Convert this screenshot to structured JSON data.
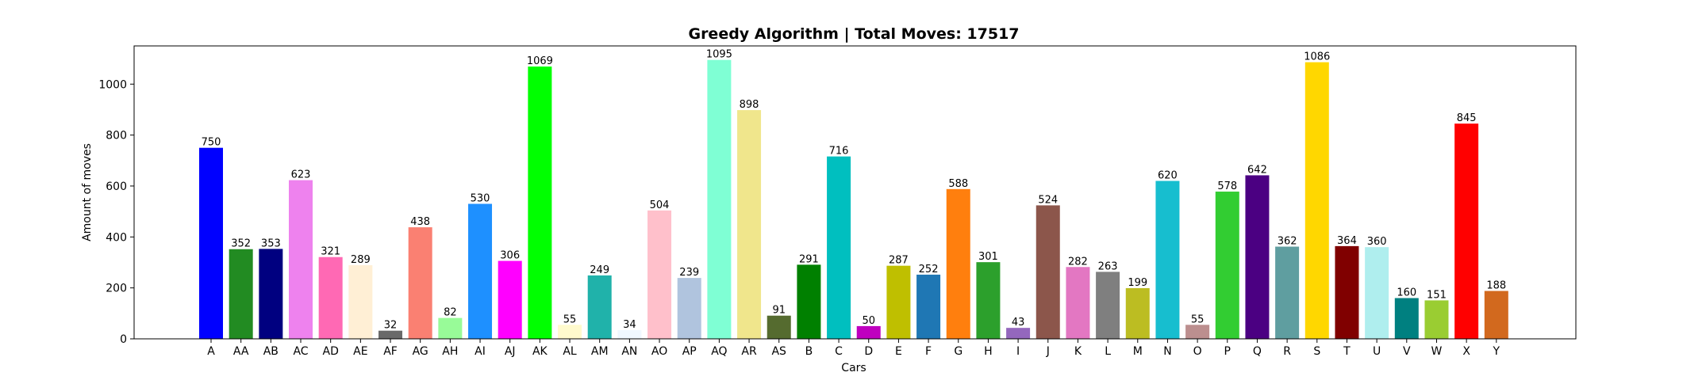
{
  "chart_data": {
    "type": "bar",
    "title": "Greedy Algorithm | Total Moves: 17517",
    "xlabel": "Cars",
    "ylabel": "Amount of moves",
    "ylim": [
      0,
      1150
    ],
    "yticks": [
      0,
      200,
      400,
      600,
      800,
      1000
    ],
    "grid": false,
    "categories": [
      "A",
      "AA",
      "AB",
      "AC",
      "AD",
      "AE",
      "AF",
      "AG",
      "AH",
      "AI",
      "AJ",
      "AK",
      "AL",
      "AM",
      "AN",
      "AO",
      "AP",
      "AQ",
      "AR",
      "AS",
      "B",
      "C",
      "D",
      "E",
      "F",
      "G",
      "H",
      "I",
      "J",
      "K",
      "L",
      "M",
      "N",
      "O",
      "P",
      "Q",
      "R",
      "S",
      "T",
      "U",
      "V",
      "W",
      "X",
      "Y"
    ],
    "values": [
      750,
      352,
      353,
      623,
      321,
      289,
      32,
      438,
      82,
      530,
      306,
      1069,
      55,
      249,
      34,
      504,
      239,
      1095,
      898,
      91,
      291,
      716,
      50,
      287,
      252,
      588,
      301,
      43,
      524,
      282,
      263,
      199,
      620,
      55,
      578,
      642,
      362,
      1086,
      364,
      360,
      160,
      151,
      845,
      188
    ],
    "colors": [
      "#0000ff",
      "#228b22",
      "#000080",
      "#ee82ee",
      "#ff69b4",
      "#ffefd5",
      "#696969",
      "#fa8072",
      "#98fb98",
      "#1e90ff",
      "#ff00ff",
      "#00ff00",
      "#fffacd",
      "#20b2aa",
      "#f0f8ff",
      "#ffc0cb",
      "#b0c4de",
      "#7fffd4",
      "#f0e68c",
      "#556b2f",
      "#008000",
      "#00bfbf",
      "#bf00bf",
      "#bfbf00",
      "#1f77b4",
      "#ff7f0e",
      "#2ca02c",
      "#9467bd",
      "#8c564b",
      "#e377c2",
      "#7f7f7f",
      "#bcbd22",
      "#17becf",
      "#bc8f8f",
      "#32cd32",
      "#4b0082",
      "#5f9ea0",
      "#ffd700",
      "#800000",
      "#afeeee",
      "#008080",
      "#9acd32",
      "#ff0000",
      "#d2691e"
    ]
  }
}
